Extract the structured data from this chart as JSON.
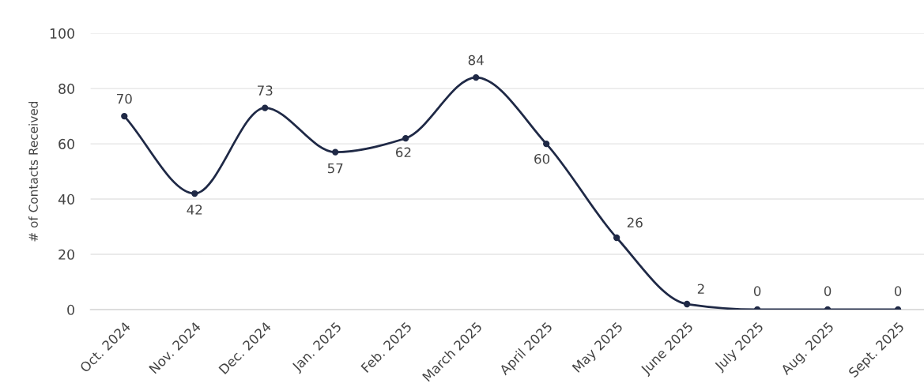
{
  "chart_data": {
    "type": "line",
    "ylabel": "# of Contacts Received",
    "categories": [
      "Oct. 2024",
      "Nov. 2024",
      "Dec. 2024",
      "Jan. 2025",
      "Feb. 2025",
      "March 2025",
      "April 2025",
      "May 2025",
      "June 2025",
      "July 2025",
      "Aug. 2025",
      "Sept. 2025"
    ],
    "series": [
      {
        "color": "#1f2946",
        "values": [
          70,
          42,
          73,
          57,
          62,
          84,
          60,
          26,
          2,
          0,
          0,
          0
        ]
      }
    ],
    "ylim": [
      0,
      100
    ],
    "yticks": [
      0,
      20,
      40,
      60,
      80,
      100
    ],
    "grid": "y",
    "marker": "circle",
    "line_style": "solid",
    "data_labels": true
  }
}
